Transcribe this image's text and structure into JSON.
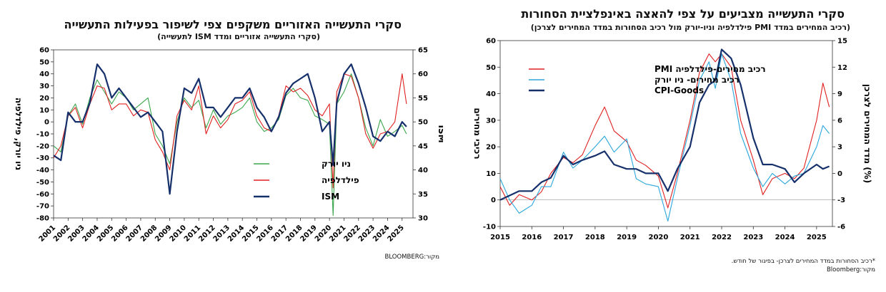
{
  "charts": {
    "left": {
      "title": "סקרי התעשייה האזוריים משקפים צפי לשיפור בפעילות התעשייה",
      "subtitle": "(סקרי התעשייה אזוריים ומדד ISM לתעשייה)",
      "source": "מקור:BLOOMBERG"
    },
    "right": {
      "title": "סקרי התעשייה מצביעים על צפי להאצה באינפלציית הסחורות",
      "subtitle": "(רכיב המחירים במדד PMI פילדלפיה וניו-יורק מול רכיב הסחורות במדד המחירים לצרכן)",
      "footnote": "*רכיב הסחורות במדד המחירים לצרכן- בפיגור של חודש.",
      "source": "מקור:Bloomberg"
    }
  },
  "chart_data": [
    {
      "type": "line",
      "title": "סקרי התעשייה האזוריים משקפים צפי לשיפור בפעילות התעשייה",
      "ylabel": "ניו יורק, פילדלפיה",
      "y2label": "ISM",
      "ylim": [
        -80,
        60
      ],
      "y2lim": [
        30,
        65
      ],
      "yticks": [
        "60",
        "50",
        "40",
        "30",
        "20",
        "10",
        "0",
        "-10",
        "-20",
        "-30",
        "-40",
        "-50",
        "-60",
        "-70",
        "-80"
      ],
      "y2ticks": [
        "65",
        "60",
        "55",
        "50",
        "45",
        "40",
        "35",
        "30"
      ],
      "xticks": [
        "2001",
        "2002",
        "2003",
        "2004",
        "2005",
        "2006",
        "2007",
        "2008",
        "2009",
        "2010",
        "2011",
        "2012",
        "2013",
        "2014",
        "2015",
        "2016",
        "2017",
        "2018",
        "2019",
        "2020",
        "2021",
        "2022",
        "2023",
        "2024",
        "2025"
      ],
      "legend_position": "bottom-left",
      "series": [
        {
          "name": "ניו יורק",
          "color": "#3aa64c",
          "axis": "left",
          "x": [
            2001.0,
            2001.5,
            2002.0,
            2002.5,
            2003.0,
            2003.5,
            2004.0,
            2004.5,
            2005.0,
            2005.5,
            2006.0,
            2006.5,
            2007.0,
            2007.5,
            2008.0,
            2008.5,
            2009.0,
            2009.5,
            2010.0,
            2010.5,
            2011.0,
            2011.5,
            2012.0,
            2012.5,
            2013.0,
            2013.5,
            2014.0,
            2014.5,
            2015.0,
            2015.5,
            2016.0,
            2016.5,
            2017.0,
            2017.5,
            2018.0,
            2018.5,
            2019.0,
            2019.5,
            2020.0,
            2020.25,
            2020.5,
            2021.0,
            2021.5,
            2022.0,
            2022.5,
            2023.0,
            2023.5,
            2024.0,
            2024.5,
            2025.0,
            2025.3
          ],
          "values": [
            -20,
            -25,
            5,
            15,
            -2,
            20,
            35,
            25,
            15,
            25,
            20,
            10,
            15,
            20,
            -10,
            -20,
            -35,
            0,
            20,
            12,
            18,
            -5,
            10,
            -2,
            5,
            8,
            12,
            20,
            0,
            -8,
            -5,
            2,
            22,
            28,
            20,
            18,
            5,
            2,
            -2,
            -78,
            15,
            25,
            40,
            20,
            -5,
            -20,
            2,
            -12,
            -8,
            -3,
            -10
          ]
        },
        {
          "name": "פילדלפיה",
          "color": "#e02020",
          "axis": "left",
          "x": [
            2001.0,
            2001.5,
            2002.0,
            2002.5,
            2003.0,
            2003.5,
            2004.0,
            2004.5,
            2005.0,
            2005.5,
            2006.0,
            2006.5,
            2007.0,
            2007.5,
            2008.0,
            2008.5,
            2009.0,
            2009.5,
            2010.0,
            2010.5,
            2011.0,
            2011.5,
            2012.0,
            2012.5,
            2013.0,
            2013.5,
            2014.0,
            2014.5,
            2015.0,
            2015.5,
            2016.0,
            2016.5,
            2017.0,
            2017.5,
            2018.0,
            2018.5,
            2019.0,
            2019.5,
            2020.0,
            2020.25,
            2020.5,
            2021.0,
            2021.5,
            2022.0,
            2022.5,
            2023.0,
            2023.5,
            2024.0,
            2024.5,
            2025.0,
            2025.3
          ],
          "values": [
            -30,
            -20,
            5,
            12,
            -5,
            15,
            30,
            28,
            10,
            15,
            15,
            5,
            10,
            8,
            -15,
            -25,
            -40,
            5,
            18,
            10,
            30,
            -10,
            5,
            -5,
            2,
            15,
            18,
            25,
            5,
            -5,
            -8,
            5,
            30,
            25,
            28,
            22,
            10,
            5,
            15,
            -55,
            25,
            40,
            38,
            20,
            -10,
            -22,
            -10,
            -8,
            0,
            40,
            15
          ]
        },
        {
          "name": "ISM",
          "color": "#16306b",
          "axis": "right",
          "x": [
            2001.0,
            2001.5,
            2002.0,
            2002.5,
            2003.0,
            2003.5,
            2004.0,
            2004.5,
            2005.0,
            2005.5,
            2006.0,
            2006.5,
            2007.0,
            2007.5,
            2008.0,
            2008.5,
            2009.0,
            2009.5,
            2010.0,
            2010.5,
            2011.0,
            2011.5,
            2012.0,
            2012.5,
            2013.0,
            2013.5,
            2014.0,
            2014.5,
            2015.0,
            2015.5,
            2016.0,
            2016.5,
            2017.0,
            2017.5,
            2018.0,
            2018.5,
            2019.0,
            2019.5,
            2020.0,
            2020.25,
            2020.5,
            2021.0,
            2021.5,
            2022.0,
            2022.5,
            2023.0,
            2023.5,
            2024.0,
            2024.5,
            2025.0,
            2025.3
          ],
          "values": [
            43,
            42,
            52,
            50,
            50,
            54,
            62,
            60,
            55,
            57,
            55,
            53,
            51,
            52,
            50,
            48,
            35,
            48,
            57,
            56,
            59,
            53,
            53,
            51,
            53,
            55,
            55,
            57,
            53,
            51,
            48,
            51,
            56,
            58,
            59,
            60,
            55,
            48,
            50,
            41,
            54,
            60,
            62,
            58,
            53,
            47,
            46,
            48,
            47,
            50,
            49
          ]
        }
      ]
    },
    {
      "type": "line",
      "title": "סקרי התעשייה מצביעים על צפי להאצה באינפלציית הסחורות",
      "ylabel": "רכיבי מחירים",
      "y2label": "מדד המחירים לצרכן (%)",
      "ylim": [
        -10,
        60
      ],
      "y2lim": [
        -6,
        15
      ],
      "yticks": [
        "60",
        "50",
        "40",
        "30",
        "20",
        "10",
        "0",
        "-10"
      ],
      "y2ticks": [
        "15",
        "12",
        "9",
        "6",
        "3",
        "0",
        "-3",
        "-6"
      ],
      "xticks": [
        "2015",
        "2016",
        "2017",
        "2018",
        "2019",
        "2020",
        "2021",
        "2022",
        "2023",
        "2024",
        "2025"
      ],
      "legend_position": "top-left",
      "series": [
        {
          "name": "רכיב מחירים-פילדלפיה PMI",
          "color": "#e02020",
          "axis": "left",
          "x": [
            2015.0,
            2015.3,
            2015.6,
            2016.0,
            2016.3,
            2016.6,
            2017.0,
            2017.3,
            2017.6,
            2018.0,
            2018.3,
            2018.6,
            2019.0,
            2019.3,
            2019.6,
            2020.0,
            2020.3,
            2020.6,
            2021.0,
            2021.3,
            2021.6,
            2021.8,
            2022.0,
            2022.3,
            2022.6,
            2023.0,
            2023.3,
            2023.6,
            2024.0,
            2024.3,
            2024.6,
            2025.0,
            2025.2,
            2025.4
          ],
          "values": [
            5,
            -2,
            2,
            0,
            3,
            10,
            16,
            14,
            17,
            28,
            35,
            26,
            22,
            15,
            13,
            9,
            -3,
            10,
            30,
            48,
            55,
            52,
            55,
            50,
            30,
            15,
            2,
            8,
            10,
            8,
            12,
            30,
            44,
            35
          ]
        },
        {
          "name": "רכיב מחירים- ניו יורק",
          "color": "#2aa7dc",
          "axis": "left",
          "x": [
            2015.0,
            2015.3,
            2015.6,
            2016.0,
            2016.3,
            2016.6,
            2017.0,
            2017.3,
            2017.6,
            2018.0,
            2018.3,
            2018.6,
            2019.0,
            2019.3,
            2019.6,
            2020.0,
            2020.3,
            2020.6,
            2021.0,
            2021.3,
            2021.6,
            2021.8,
            2022.0,
            2022.3,
            2022.6,
            2023.0,
            2023.3,
            2023.6,
            2024.0,
            2024.3,
            2024.6,
            2025.0,
            2025.2,
            2025.4
          ],
          "values": [
            8,
            0,
            -5,
            -2,
            5,
            5,
            18,
            12,
            15,
            20,
            24,
            18,
            23,
            8,
            6,
            5,
            -8,
            8,
            28,
            45,
            52,
            42,
            55,
            45,
            25,
            12,
            5,
            10,
            6,
            9,
            10,
            20,
            28,
            25
          ]
        },
        {
          "name": "CPI-Goods",
          "color": "#16306b",
          "axis": "right",
          "x": [
            2015.0,
            2015.3,
            2015.6,
            2016.0,
            2016.3,
            2016.6,
            2017.0,
            2017.3,
            2017.6,
            2018.0,
            2018.3,
            2018.6,
            2019.0,
            2019.3,
            2019.6,
            2020.0,
            2020.3,
            2020.6,
            2021.0,
            2021.3,
            2021.6,
            2021.8,
            2022.0,
            2022.3,
            2022.6,
            2023.0,
            2023.3,
            2023.6,
            2024.0,
            2024.3,
            2024.6,
            2025.0,
            2025.2,
            2025.4
          ],
          "values": [
            -3,
            -2.5,
            -2,
            -2,
            -1,
            -0.5,
            2,
            1,
            1.5,
            2,
            2.5,
            1,
            0.5,
            0.5,
            0,
            0,
            -2,
            0.5,
            3,
            8,
            10,
            10.5,
            14,
            13,
            10,
            4,
            1,
            1,
            0.5,
            -1,
            0,
            1,
            0.5,
            0.8
          ]
        }
      ]
    }
  ]
}
